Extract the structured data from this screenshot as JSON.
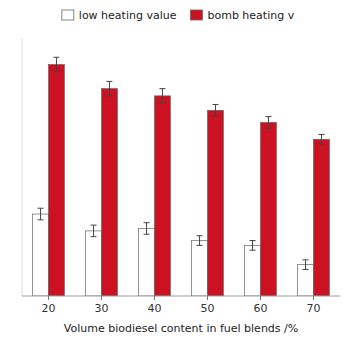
{
  "chart_data": {
    "type": "bar",
    "categories": [
      "20",
      "30",
      "40",
      "50",
      "60",
      "70"
    ],
    "series": [
      {
        "name": "low heating value",
        "color": "#ffffff",
        "values": [
          43.2,
          42.85,
          42.9,
          42.65,
          42.55,
          42.15
        ],
        "errors": [
          0.12,
          0.12,
          0.12,
          0.1,
          0.1,
          0.1
        ]
      },
      {
        "name": "bomb heating v",
        "color": "#cc1122",
        "values": [
          46.3,
          45.8,
          45.65,
          45.35,
          45.1,
          44.75
        ],
        "errors": [
          0.15,
          0.15,
          0.15,
          0.12,
          0.12,
          0.1
        ]
      }
    ],
    "xlabel": "Volume biodiesel content in fuel blends /%",
    "ylim": [
      41.5,
      46.85
    ],
    "tick_labels": "x",
    "legend": "top",
    "grid": false
  }
}
